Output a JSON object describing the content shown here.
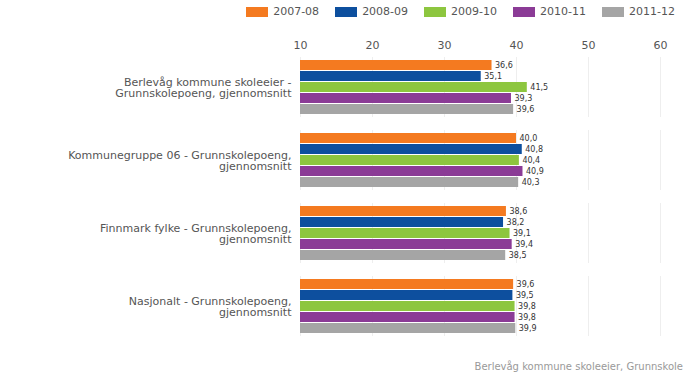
{
  "chart_data": {
    "type": "bar",
    "orientation": "horizontal",
    "categories": [
      "Berlevåg kommune skoleeier - Grunnskolepoeng, gjennomsnitt",
      "Kommunegruppe 06 - Grunnskolepoeng, gjennomsnitt",
      "Finnmark fylke - Grunnskolepoeng, gjennomsnitt",
      "Nasjonalt - Grunnskolepoeng, gjennomsnitt"
    ],
    "series": [
      {
        "name": "2007-08",
        "color": "#f47a20",
        "values": [
          36.6,
          40.0,
          38.6,
          39.6
        ],
        "value_labels": [
          "36,6",
          "40,0",
          "38,6",
          "39,6"
        ]
      },
      {
        "name": "2008-09",
        "color": "#0d4f9e",
        "values": [
          35.1,
          40.8,
          38.2,
          39.5
        ],
        "value_labels": [
          "35,1",
          "40,8",
          "38,2",
          "39,5"
        ]
      },
      {
        "name": "2009-10",
        "color": "#8dc63f",
        "values": [
          41.5,
          40.4,
          39.1,
          39.8
        ],
        "value_labels": [
          "41,5",
          "40,4",
          "39,1",
          "39,8"
        ]
      },
      {
        "name": "2010-11",
        "color": "#8b3b96",
        "values": [
          39.3,
          40.9,
          39.4,
          39.8
        ],
        "value_labels": [
          "39,3",
          "40,9",
          "39,4",
          "39,8"
        ]
      },
      {
        "name": "2011-12",
        "color": "#a5a5a5",
        "values": [
          39.6,
          40.3,
          38.5,
          39.9
        ],
        "value_labels": [
          "39,6",
          "40,3",
          "38,5",
          "39,9"
        ]
      }
    ],
    "xlim": [
      10,
      60
    ],
    "xticks": [
      10,
      20,
      30,
      40,
      50,
      60
    ],
    "grid": true,
    "data_labels": true,
    "legend": "top",
    "caption": "Berlevåg kommune skoleeier, Grunnskole"
  }
}
